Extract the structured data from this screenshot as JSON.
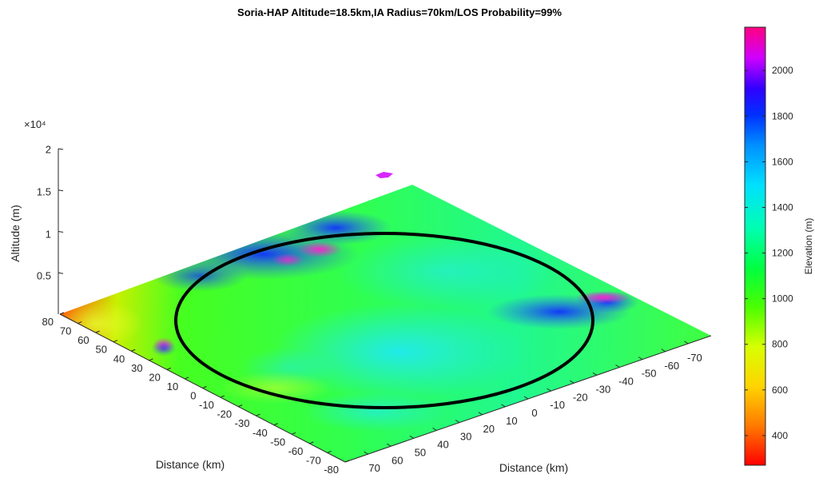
{
  "chart_data": {
    "type": "surface",
    "title": "Soria-HAP Altitude=18.5km,IA Radius=70km/LOS Probability=99%",
    "xlabel": "Distance (km)",
    "ylabel": "Distance (km)",
    "zlabel": "Altitude (m)",
    "z_exponent_label": "×10⁴",
    "x_ticks": [
      "80",
      "70",
      "60",
      "50",
      "40",
      "30",
      "20",
      "10",
      "0",
      "-10",
      "-20",
      "-30",
      "-40",
      "-50",
      "-60",
      "-70",
      "-80"
    ],
    "y_ticks": [
      "70",
      "60",
      "50",
      "40",
      "30",
      "20",
      "10",
      "0",
      "-10",
      "-20",
      "-30",
      "-40",
      "-50",
      "-60",
      "-70"
    ],
    "z_ticks": [
      "0.5",
      "1",
      "1.5",
      "2"
    ],
    "z_tick_values": [
      5000,
      10000,
      15000,
      20000
    ],
    "xlim": [
      -80,
      80
    ],
    "ylim": [
      -80,
      80
    ],
    "zlim": [
      0,
      20000
    ],
    "circle_radius_km": 70,
    "colorbar": {
      "label": "Elevation (m)",
      "ticks": [
        "400",
        "600",
        "800",
        "1000",
        "1200",
        "1400",
        "1600",
        "1800",
        "2000"
      ],
      "tick_values": [
        400,
        600,
        800,
        1000,
        1200,
        1400,
        1600,
        1800,
        2000
      ],
      "range": [
        270,
        2190
      ]
    },
    "grid": false
  }
}
